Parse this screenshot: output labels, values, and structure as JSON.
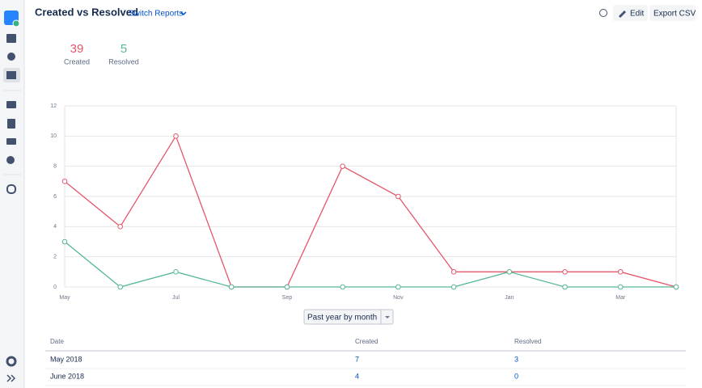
{
  "header": {
    "title": "Created vs Resolved",
    "switch": "Switch Reports",
    "edit": "Edit",
    "export": "Export CSV"
  },
  "summary": [
    {
      "value": 39,
      "label": "Created",
      "color": "#e5566b"
    },
    {
      "value": 5,
      "label": "Resolved",
      "color": "#57b894"
    }
  ],
  "chart_data": {
    "type": "line",
    "categories": [
      "May",
      null,
      "Jul",
      null,
      "Sep",
      null,
      "Nov",
      null,
      "Jan",
      null,
      "Mar",
      null
    ],
    "series": [
      {
        "name": "Created",
        "color": "#e5566b",
        "values": [
          7,
          4,
          10,
          0,
          0,
          8,
          6,
          1,
          1,
          1,
          1,
          0
        ]
      },
      {
        "name": "Resolved",
        "color": "#57b894",
        "values": [
          3,
          0,
          1,
          0,
          0,
          0,
          0,
          0,
          1,
          0,
          0,
          0
        ]
      }
    ],
    "ylim": [
      0,
      12
    ],
    "yticks": [
      0,
      2,
      4,
      6,
      8,
      10,
      12
    ],
    "grid": true
  },
  "period": "Past year by month",
  "table": {
    "headers": [
      "Date",
      "Created",
      "Resolved"
    ],
    "rows": [
      [
        "May 2018",
        7,
        3
      ],
      [
        "June 2018",
        4,
        0
      ]
    ]
  }
}
